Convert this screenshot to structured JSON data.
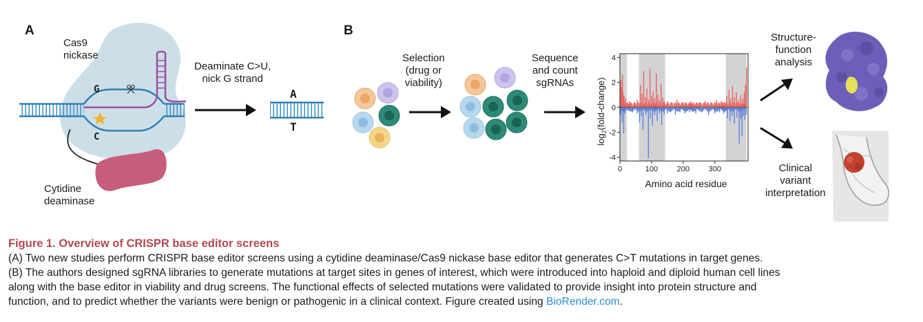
{
  "panelA": {
    "letter": "A",
    "cas9_label_line1": "Cas9",
    "cas9_label_line2": "nickase",
    "base_top": "G",
    "base_bottom": "C",
    "deaminase_line1": "Cytidine",
    "deaminase_line2": "deaminase",
    "step_line1": "Deaminate C>U,",
    "step_line2": "nick G strand",
    "product_top": "A",
    "product_bottom": "T"
  },
  "panelB": {
    "letter": "B",
    "selection_line1": "Selection",
    "selection_line2": "(drug or",
    "selection_line3": "viability)",
    "sequence_line1": "Sequence",
    "sequence_line2": "and count",
    "sequence_line3": "sgRNAs",
    "structure_line1": "Structure-",
    "structure_line2": "function",
    "structure_line3": "analysis",
    "clinical_line1": "Clinical",
    "clinical_line2": "variant",
    "clinical_line3": "interpretation"
  },
  "chart_data": {
    "type": "bar",
    "xlabel": "Amino acid residue",
    "ylabel_main": "log",
    "ylabel_sub": "2",
    "ylabel_rest": "(fold-change)",
    "xlim": [
      0,
      405
    ],
    "ylim": [
      -4.3,
      4.3
    ],
    "xticks": [
      0,
      100,
      200,
      300
    ],
    "yticks": [
      4,
      2,
      0,
      -2,
      -4
    ],
    "shaded_regions": [
      [
        0,
        22
      ],
      [
        60,
        143
      ],
      [
        335,
        400
      ]
    ],
    "positive_color": "#e8625e",
    "negative_color": "#5b82d8",
    "series": [
      {
        "values": [
          [
            3,
            2.2
          ],
          [
            6,
            1.6
          ],
          [
            8,
            2.6
          ],
          [
            10,
            1.2
          ],
          [
            13,
            0.9
          ],
          [
            18,
            0.7
          ],
          [
            30,
            0.5
          ],
          [
            45,
            0.4
          ],
          [
            55,
            0.6
          ],
          [
            65,
            1.8
          ],
          [
            70,
            1.1
          ],
          [
            75,
            2.9
          ],
          [
            80,
            0.8
          ],
          [
            85,
            1.5
          ],
          [
            90,
            0.6
          ],
          [
            95,
            3.1
          ],
          [
            100,
            0.9
          ],
          [
            105,
            1.3
          ],
          [
            110,
            0.7
          ],
          [
            115,
            2.7
          ],
          [
            120,
            1.0
          ],
          [
            125,
            0.6
          ],
          [
            130,
            1.9
          ],
          [
            135,
            0.8
          ],
          [
            140,
            0.5
          ],
          [
            150,
            0.5
          ],
          [
            165,
            0.4
          ],
          [
            180,
            0.6
          ],
          [
            200,
            0.4
          ],
          [
            225,
            0.5
          ],
          [
            250,
            0.4
          ],
          [
            270,
            0.5
          ],
          [
            290,
            0.4
          ],
          [
            305,
            0.6
          ],
          [
            320,
            0.5
          ],
          [
            330,
            0.4
          ],
          [
            338,
            0.9
          ],
          [
            345,
            1.4
          ],
          [
            350,
            0.7
          ],
          [
            356,
            1.7
          ],
          [
            362,
            0.8
          ],
          [
            368,
            1.2
          ],
          [
            375,
            0.6
          ],
          [
            382,
            1.0
          ],
          [
            388,
            0.7
          ],
          [
            393,
            1.2
          ],
          [
            397,
            1.8
          ],
          [
            400,
            3.2
          ],
          [
            2,
            -0.6
          ],
          [
            7,
            -1.2
          ],
          [
            12,
            -2.1
          ],
          [
            16,
            -0.5
          ],
          [
            25,
            -0.3
          ],
          [
            40,
            -0.4
          ],
          [
            55,
            -0.5
          ],
          [
            62,
            -1.2
          ],
          [
            68,
            -0.7
          ],
          [
            73,
            -1.8
          ],
          [
            82,
            -0.6
          ],
          [
            90,
            -4.1
          ],
          [
            96,
            -0.9
          ],
          [
            103,
            -1.5
          ],
          [
            110,
            -0.6
          ],
          [
            118,
            -1.1
          ],
          [
            125,
            -0.5
          ],
          [
            132,
            -1.4
          ],
          [
            140,
            -0.6
          ],
          [
            150,
            -0.5
          ],
          [
            160,
            -0.4
          ],
          [
            175,
            -0.6
          ],
          [
            190,
            -0.4
          ],
          [
            205,
            -0.5
          ],
          [
            220,
            -0.4
          ],
          [
            240,
            -0.5
          ],
          [
            260,
            -0.4
          ],
          [
            280,
            -0.6
          ],
          [
            300,
            -0.5
          ],
          [
            315,
            -0.4
          ],
          [
            328,
            -0.5
          ],
          [
            340,
            -0.9
          ],
          [
            348,
            -1.1
          ],
          [
            355,
            -0.7
          ],
          [
            362,
            -1.3
          ],
          [
            370,
            -0.8
          ],
          [
            377,
            -2.9
          ],
          [
            382,
            -0.9
          ],
          [
            386,
            -2.3
          ],
          [
            390,
            -0.7
          ],
          [
            395,
            -1.0
          ],
          [
            399,
            -0.6
          ]
        ]
      }
    ]
  },
  "caption": {
    "title": "Figure 1.  Overview of CRISPR base editor screens",
    "line1": "(A) Two new studies perform CRISPR base editor screens using a cytidine deaminase/Cas9 nickase base editor that generates C>T mutations in target genes.",
    "line2": "(B) The authors designed sgRNA libraries to generate mutations at target sites in genes of interest, which were introduced into haploid and diploid human cell lines",
    "line3": "along with the base editor in viability and drug screens. The functional effects of selected mutations were validated to provide insight into protein structure and",
    "line4_prefix": "function, and to predict whether the variants were benign or pathogenic in a clinical context. Figure created using ",
    "line4_link": "BioRender.com",
    "line4_suffix": "."
  },
  "colors": {
    "cas9_fill": "#c7dce6",
    "dna_blue": "#3a8fc4",
    "guide_purple": "#9a4fa0",
    "deaminase_pink": "#c65d7b",
    "caption_title": "#b04a52",
    "link": "#2a8ed6",
    "protein_purple": "#6b5fb8",
    "tumor_red": "#c2402f"
  }
}
